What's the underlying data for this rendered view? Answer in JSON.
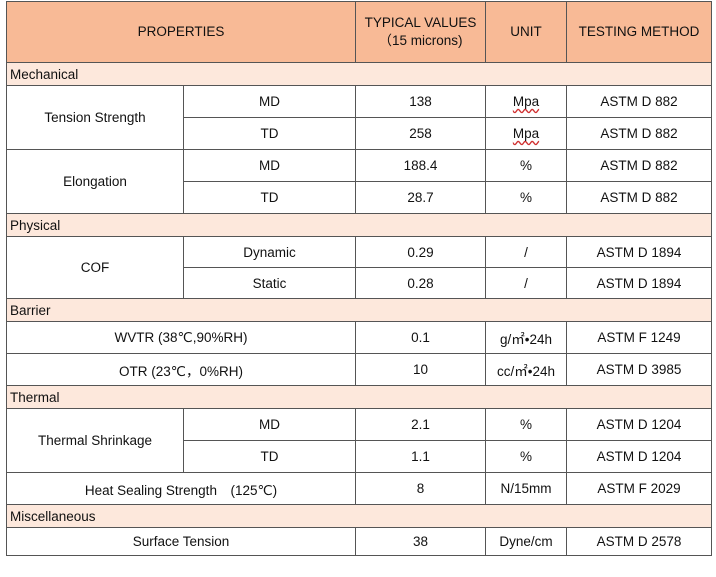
{
  "header": {
    "properties": "PROPERTIES",
    "typical_values_line1": "TYPICAL VALUES",
    "typical_values_line2": "（15 microns)",
    "unit": "UNIT",
    "testing_method": "TESTING METHOD"
  },
  "sections": {
    "mechanical": "Mechanical",
    "physical": "Physical",
    "barrier": "Barrier",
    "thermal": "Thermal",
    "miscellaneous": "Miscellaneous"
  },
  "rows": {
    "tension_strength": {
      "label": "Tension Strength",
      "md": {
        "dir": "MD",
        "value": "138",
        "unit": "Mpa",
        "method": "ASTM D 882"
      },
      "td": {
        "dir": "TD",
        "value": "258",
        "unit": "Mpa",
        "method": "ASTM D 882"
      }
    },
    "elongation": {
      "label": "Elongation",
      "md": {
        "dir": "MD",
        "value": "188.4",
        "unit": "%",
        "method": "ASTM D 882"
      },
      "td": {
        "dir": "TD",
        "value": "28.7",
        "unit": "%",
        "method": "ASTM D 882"
      }
    },
    "cof": {
      "label": "COF",
      "dynamic": {
        "dir": "Dynamic",
        "value": "0.29",
        "unit": "/",
        "method": "ASTM D 1894"
      },
      "static": {
        "dir": "Static",
        "value": "0.28",
        "unit": "/",
        "method": "ASTM D 1894"
      }
    },
    "wvtr": {
      "label": "WVTR (38℃,90%RH)",
      "value": "0.1",
      "unit": "g/㎡•24h",
      "method": "ASTM F 1249"
    },
    "otr": {
      "label": "OTR (23℃，0%RH)",
      "value": "10",
      "unit": "cc/㎡•24h",
      "method": "ASTM D 3985"
    },
    "thermal_shrinkage": {
      "label": "Thermal Shrinkage",
      "md": {
        "dir": "MD",
        "value": "2.1",
        "unit": "%",
        "method": "ASTM D 1204"
      },
      "td": {
        "dir": "TD",
        "value": "1.1",
        "unit": "%",
        "method": "ASTM D 1204"
      }
    },
    "heat_sealing": {
      "label": "Heat Sealing Strength　(125℃)",
      "value": "8",
      "unit": "N/15mm",
      "method": "ASTM F 2029"
    },
    "surface_tension": {
      "label": "Surface Tension",
      "value": "38",
      "unit": "Dyne/cm",
      "method": "ASTM D 2578"
    }
  }
}
